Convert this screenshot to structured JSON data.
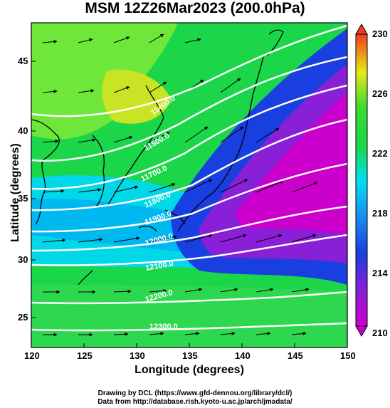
{
  "title": "MSM 12Z26Mar2023 (200.0hPa)",
  "x_axis": {
    "label": "Longitude (degrees)",
    "ticks": [
      "120",
      "125",
      "130",
      "135",
      "140",
      "145",
      "150"
    ]
  },
  "y_axis": {
    "label": "Latitude (degrees)",
    "ticks": [
      "45",
      "40",
      "35",
      "30",
      "25"
    ]
  },
  "colorbar": {
    "ticks": [
      "230",
      "226",
      "222",
      "218",
      "214",
      "210"
    ]
  },
  "contour_labels": [
    "11400.0",
    "11500.0",
    "11700.0",
    "11800.0",
    "11900.0",
    "12000.0",
    "12100.0",
    "12200.0",
    "12300.0"
  ],
  "credits": {
    "line1": "Drawing by DCL (https://www.gfd-dennou.org/library/dcl/)",
    "line2": "Data from http://database.rish.kyoto-u.ac.jp/arch/jmadata/"
  },
  "colors": {
    "purple": "#cc00cc",
    "blue": "#1a3fe0",
    "cyan": "#00e0f0",
    "green": "#1cd64a",
    "yellow": "#e8e817",
    "red": "#f03c1e",
    "contour": "#ffffff"
  }
}
